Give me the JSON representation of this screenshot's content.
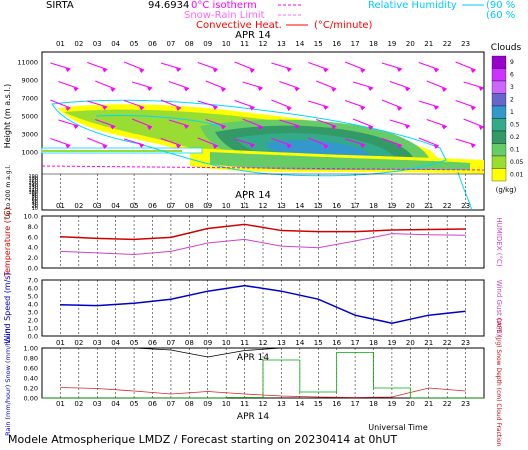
{
  "header": {
    "site": "SIRTA",
    "coords": "94.6934",
    "iso_label": "0°C isotherm",
    "snow_label": "Snow-Rain Limit",
    "conv_label": "Convective Heat.",
    "conv_unit": "(°C/minute)",
    "rh_label": "Relative Humidity",
    "rh_val1": "(90 %",
    "rh_val2": "(60 %"
  },
  "date_label": "APR 14",
  "footer": {
    "left": "Modele Atmospherique LMDZ / Forecast starting on 20230414 at 0hUT",
    "axis_title": "Universal Time"
  },
  "colors": {
    "temperature": "#d00000",
    "humidex": "#cc44cc",
    "wind": "#0000cc",
    "rain": "#dd2222",
    "snow_depth": "#00aa00",
    "cloud": "#000000",
    "rh": "#00d8ff",
    "arrow": "#ff00ff"
  },
  "chart_data": [
    {
      "type": "heatmap",
      "name": "clouds",
      "title": "Clouds",
      "ylabel": "Height (m a.s.l.)",
      "ylabel_low": "Up to 200 m a.g.l.",
      "unit": "(g/kg)",
      "x_ticks": [
        "01",
        "02",
        "03",
        "04",
        "05",
        "06",
        "07",
        "08",
        "09",
        "10",
        "11",
        "12",
        "13",
        "14",
        "15",
        "16",
        "17",
        "18",
        "19",
        "20",
        "21",
        "22",
        "23"
      ],
      "y_ticks": [
        "11000",
        "9000",
        "7000",
        "5000",
        "3000",
        "1000",
        "190",
        "180",
        "170",
        "160",
        "150",
        "140",
        "130",
        "120",
        "110",
        "100",
        "90",
        "80",
        "70",
        "60",
        "50",
        "40",
        "30",
        "20",
        "10"
      ],
      "colorbar": {
        "labels": [
          "9",
          "6",
          "3",
          "2",
          "1",
          "0.5",
          "0.2",
          "0.1",
          "0.05",
          "0.01"
        ],
        "colors": [
          "#9900cc",
          "#cc33ff",
          "#cc66ff",
          "#6666cc",
          "#3399cc",
          "#33aa88",
          "#339966",
          "#66cc66",
          "#99dd33",
          "#ffff00"
        ]
      }
    },
    {
      "type": "line",
      "name": "temperature",
      "ylabel": "Temperature (°C)",
      "ylabel_right": "HUMIDEX (°C)",
      "ylim": [
        0,
        10
      ],
      "y_ticks": [
        "10.0",
        "8.0",
        "6.0",
        "4.0",
        "2.0",
        "0.0"
      ],
      "x_ticks": [
        "01",
        "03",
        "05",
        "07",
        "09",
        "11",
        "13",
        "15",
        "17",
        "19",
        "21",
        "23"
      ],
      "x": [
        1,
        3,
        5,
        7,
        9,
        11,
        13,
        15,
        17,
        19,
        21,
        23
      ],
      "series": [
        {
          "values": [
            6.0,
            5.7,
            5.5,
            5.9,
            7.6,
            8.4,
            7.2,
            7.0,
            7.0,
            7.3,
            7.4,
            7.5
          ]
        },
        {
          "values": [
            3.2,
            2.9,
            2.6,
            3.2,
            4.8,
            5.5,
            4.2,
            3.9,
            5.2,
            6.6,
            6.4,
            6.3
          ]
        }
      ]
    },
    {
      "type": "line",
      "name": "wind",
      "ylabel": "Wind Speed (m/s)",
      "ylabel_right": "Wind Gust (m/s)",
      "ylim": [
        0,
        7
      ],
      "y_ticks": [
        "7.0",
        "6.0",
        "5.0",
        "4.0",
        "3.0",
        "2.0",
        "1.0",
        "0.0"
      ],
      "x_ticks": [
        "01",
        "03",
        "05",
        "07",
        "09",
        "11",
        "13",
        "15",
        "17",
        "19",
        "21",
        "23"
      ],
      "x": [
        1,
        3,
        5,
        7,
        9,
        11,
        13,
        15,
        17,
        19,
        21,
        23
      ],
      "series": [
        {
          "values": [
            3.9,
            3.8,
            4.1,
            4.6,
            5.6,
            6.3,
            5.6,
            4.6,
            2.6,
            1.6,
            2.6,
            3.1
          ]
        }
      ]
    },
    {
      "type": "line",
      "name": "precip",
      "ylabel_left": "Rain (mm/hour) Snow (mm/hour)",
      "ylabel_right": "CAPE (J/g) Snow Depth (cm) Cloud Fraction",
      "ylim": [
        0,
        1
      ],
      "y_ticks": [
        "1.00",
        "0.80",
        "0.60",
        "0.40",
        "0.20",
        "0.00"
      ],
      "x_ticks": [
        "01",
        "02",
        "03",
        "04",
        "05",
        "06",
        "07",
        "08",
        "09",
        "10",
        "11",
        "12",
        "13",
        "14",
        "15",
        "16",
        "17",
        "18",
        "19",
        "20",
        "21",
        "22",
        "23"
      ],
      "x": [
        1,
        3,
        5,
        7,
        9,
        11,
        13,
        15,
        17,
        19,
        21,
        23
      ],
      "series": [
        {
          "values": [
            0.21,
            0.19,
            0.14,
            0.08,
            0.13,
            0.08,
            0.04,
            0.02,
            0.01,
            0.02,
            0.2,
            0.14
          ]
        },
        {
          "values": [
            0.0,
            0.0,
            0.0,
            0.0,
            0.0,
            0.01,
            0.76,
            0.12,
            0.91,
            0.2,
            0.0,
            0.0
          ]
        },
        {
          "values": [
            1.0,
            1.0,
            1.0,
            0.96,
            0.82,
            0.95,
            1.0,
            1.0,
            1.0,
            1.0,
            1.0,
            1.0
          ]
        }
      ]
    }
  ]
}
